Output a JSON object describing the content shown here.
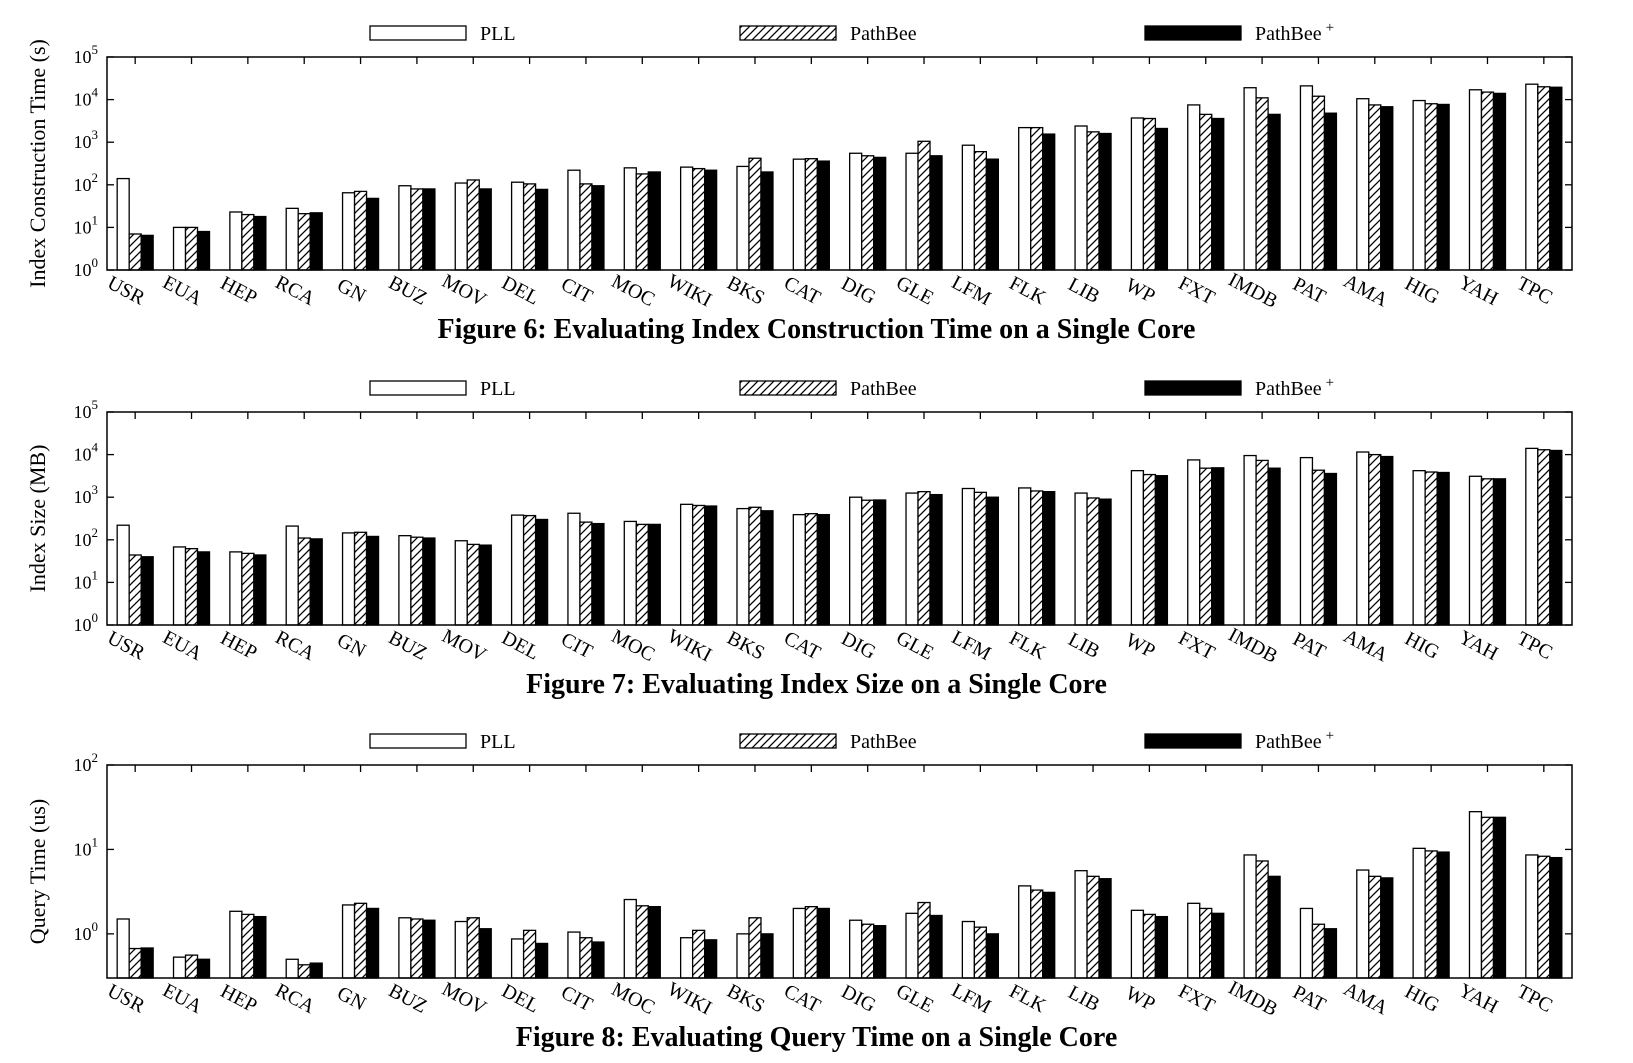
{
  "series_styles": {
    "PLL": "white",
    "PathBee": "hatched",
    "PathBee+": "black"
  },
  "chart_data": [
    {
      "type": "bar",
      "scale": "log",
      "title": "Figure 6: Evaluating Index Construction Time on a Single Core",
      "ylabel": "Index Construction Time (s)",
      "ylim": [
        1,
        100000
      ],
      "yticks": [
        {
          "base": "10",
          "exp": "0",
          "value": 1
        },
        {
          "base": "10",
          "exp": "1",
          "value": 10
        },
        {
          "base": "10",
          "exp": "2",
          "value": 100
        },
        {
          "base": "10",
          "exp": "3",
          "value": 1000
        },
        {
          "base": "10",
          "exp": "4",
          "value": 10000
        },
        {
          "base": "10",
          "exp": "5",
          "value": 100000
        }
      ],
      "legend": {
        "placement": "top",
        "entries": [
          {
            "label": "PLL",
            "sup": ""
          },
          {
            "label": "PathBee",
            "sup": ""
          },
          {
            "label": "PathBee",
            "sup": "+"
          }
        ]
      },
      "categories": [
        "USR",
        "EUA",
        "HEP",
        "RCA",
        "GN",
        "BUZ",
        "MOV",
        "DEL",
        "CIT",
        "MOC",
        "WIKI",
        "BKS",
        "CAT",
        "DIG",
        "GLE",
        "LFM",
        "FLK",
        "LIB",
        "WP",
        "FXT",
        "IMDB",
        "PAT",
        "AMA",
        "HIG",
        "YAH",
        "TPC"
      ],
      "series": [
        {
          "name": "PLL",
          "values": [
            140,
            10,
            23,
            28,
            65,
            95,
            110,
            115,
            220,
            250,
            260,
            270,
            400,
            550,
            550,
            850,
            2200,
            2400,
            3700,
            7500,
            19000,
            21000,
            10500,
            9500,
            17000,
            23000
          ]
        },
        {
          "name": "PathBee",
          "values": [
            7,
            10,
            20,
            21,
            70,
            80,
            130,
            105,
            105,
            180,
            240,
            420,
            410,
            480,
            1050,
            600,
            2200,
            1750,
            3600,
            4500,
            11000,
            12000,
            7500,
            8000,
            15000,
            20000
          ]
        },
        {
          "name": "PathBee+",
          "values": [
            6.5,
            8,
            18,
            22,
            48,
            80,
            80,
            78,
            95,
            200,
            220,
            200,
            360,
            440,
            480,
            400,
            1550,
            1600,
            2100,
            3600,
            4500,
            4800,
            6800,
            7700,
            14000,
            19500
          ]
        }
      ]
    },
    {
      "type": "bar",
      "scale": "log",
      "title": "Figure 7: Evaluating Index Size on a Single Core",
      "ylabel": "Index Size (MB)",
      "ylim": [
        1,
        100000
      ],
      "yticks": [
        {
          "base": "10",
          "exp": "0",
          "value": 1
        },
        {
          "base": "10",
          "exp": "1",
          "value": 10
        },
        {
          "base": "10",
          "exp": "2",
          "value": 100
        },
        {
          "base": "10",
          "exp": "3",
          "value": 1000
        },
        {
          "base": "10",
          "exp": "4",
          "value": 10000
        },
        {
          "base": "10",
          "exp": "5",
          "value": 100000
        }
      ],
      "legend": {
        "placement": "top",
        "entries": [
          {
            "label": "PLL",
            "sup": ""
          },
          {
            "label": "PathBee",
            "sup": ""
          },
          {
            "label": "PathBee",
            "sup": "+"
          }
        ]
      },
      "categories": [
        "USR",
        "EUA",
        "HEP",
        "RCA",
        "GN",
        "BUZ",
        "MOV",
        "DEL",
        "CIT",
        "MOC",
        "WIKI",
        "BKS",
        "CAT",
        "DIG",
        "GLE",
        "LFM",
        "FLK",
        "LIB",
        "WP",
        "FXT",
        "IMDB",
        "PAT",
        "AMA",
        "HIG",
        "YAH",
        "TPC"
      ],
      "series": [
        {
          "name": "PLL",
          "values": [
            220,
            68,
            52,
            210,
            145,
            125,
            95,
            380,
            420,
            270,
            680,
            540,
            390,
            1000,
            1250,
            1600,
            1650,
            1250,
            4200,
            7500,
            9500,
            8500,
            11500,
            4200,
            3100,
            14000
          ]
        },
        {
          "name": "PathBee",
          "values": [
            44,
            62,
            48,
            110,
            150,
            115,
            78,
            370,
            260,
            230,
            640,
            580,
            410,
            850,
            1350,
            1300,
            1400,
            960,
            3400,
            4800,
            7300,
            4300,
            10000,
            3900,
            2700,
            13000
          ]
        },
        {
          "name": "PathBee+",
          "values": [
            40,
            52,
            44,
            105,
            120,
            110,
            75,
            300,
            240,
            230,
            620,
            480,
            390,
            860,
            1150,
            1000,
            1350,
            900,
            3200,
            4900,
            4800,
            3600,
            9000,
            3800,
            2700,
            12500
          ]
        }
      ]
    },
    {
      "type": "bar",
      "scale": "log",
      "title": "Figure 8: Evaluating Query Time on a Single Core",
      "ylabel": "Query Time (us)",
      "ylim": [
        0.3,
        100
      ],
      "yticks": [
        {
          "base": "10",
          "exp": "0",
          "value": 1
        },
        {
          "base": "10",
          "exp": "1",
          "value": 10
        },
        {
          "base": "10",
          "exp": "2",
          "value": 100
        }
      ],
      "legend": {
        "placement": "top",
        "entries": [
          {
            "label": "PLL",
            "sup": ""
          },
          {
            "label": "PathBee",
            "sup": ""
          },
          {
            "label": "PathBee",
            "sup": "+"
          }
        ]
      },
      "categories": [
        "USR",
        "EUA",
        "HEP",
        "RCA",
        "GN",
        "BUZ",
        "MOV",
        "DEL",
        "CIT",
        "MOC",
        "WIKI",
        "BKS",
        "CAT",
        "DIG",
        "GLE",
        "LFM",
        "FLK",
        "LIB",
        "WP",
        "FXT",
        "IMDB",
        "PAT",
        "AMA",
        "HIG",
        "YAH",
        "TPC"
      ],
      "series": [
        {
          "name": "PLL",
          "values": [
            1.5,
            0.53,
            1.85,
            0.5,
            2.2,
            1.55,
            1.4,
            0.87,
            1.05,
            2.55,
            0.9,
            1.0,
            2.0,
            1.45,
            1.75,
            1.4,
            3.7,
            5.6,
            1.9,
            2.3,
            8.6,
            2.0,
            5.7,
            10.3,
            28,
            8.6
          ]
        },
        {
          "name": "PathBee",
          "values": [
            0.67,
            0.56,
            1.7,
            0.43,
            2.3,
            1.5,
            1.55,
            1.1,
            0.9,
            2.15,
            1.1,
            1.55,
            2.1,
            1.3,
            2.35,
            1.2,
            3.3,
            4.8,
            1.7,
            2.0,
            7.3,
            1.3,
            4.8,
            9.6,
            24,
            8.3
          ]
        },
        {
          "name": "PathBee+",
          "values": [
            0.68,
            0.5,
            1.6,
            0.45,
            2.0,
            1.45,
            1.15,
            0.77,
            0.8,
            2.1,
            0.85,
            1.0,
            2.0,
            1.25,
            1.65,
            1.0,
            3.1,
            4.5,
            1.6,
            1.75,
            4.8,
            1.15,
            4.6,
            9.3,
            24,
            8.0
          ]
        }
      ]
    }
  ]
}
